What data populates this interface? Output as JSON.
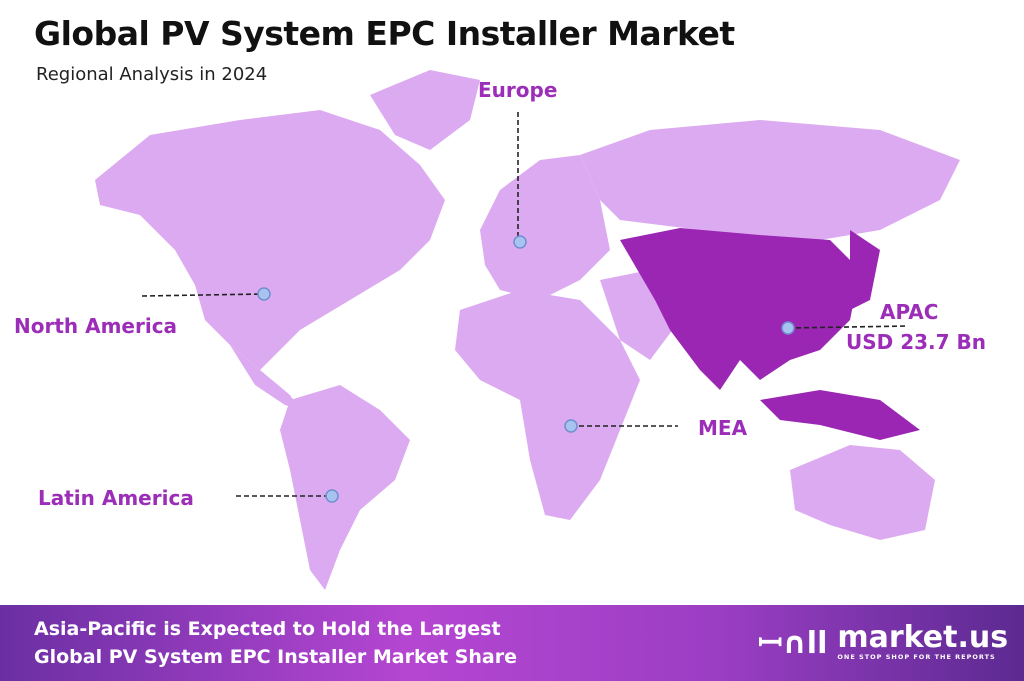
{
  "header": {
    "title": "Global PV System EPC Installer Market",
    "subtitle": "Regional Analysis in 2024"
  },
  "regions": [
    {
      "name": "North America"
    },
    {
      "name": "Europe"
    },
    {
      "name": "APAC",
      "value": "USD 23.7 Bn",
      "highlighted": true
    },
    {
      "name": "MEA"
    },
    {
      "name": "Latin America"
    }
  ],
  "colors": {
    "map_base": "#dcaaf0",
    "highlight": "#9a26b3",
    "label": "#9c2db8"
  },
  "footer": {
    "line1": "Asia-Pacific is Expected to Hold the Largest",
    "line2": "Global PV System EPC Installer Market Share"
  },
  "brand": {
    "name": "market.us",
    "tagline": "ONE STOP SHOP FOR THE REPORTS"
  }
}
